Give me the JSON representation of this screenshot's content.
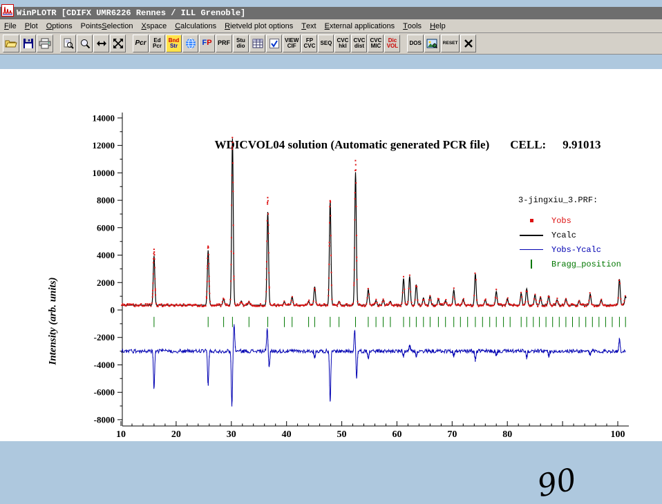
{
  "window": {
    "title": "WinPLOTR [CDIFX UMR6226 Rennes / ILL Grenoble]"
  },
  "menubar": {
    "items": [
      {
        "label": "File",
        "u": 0
      },
      {
        "label": "Plot",
        "u": 0
      },
      {
        "label": "Options",
        "u": 0
      },
      {
        "label": "Points Selection",
        "u": 7
      },
      {
        "label": "X space",
        "u": 0
      },
      {
        "label": "Calculations",
        "u": 0
      },
      {
        "label": "Rietveld plot options",
        "u": 0
      },
      {
        "label": "Text",
        "u": 0
      },
      {
        "label": "External applications",
        "u": 0
      },
      {
        "label": "Tools",
        "u": 0
      },
      {
        "label": "Help",
        "u": 0
      }
    ]
  },
  "toolbar": {
    "buttons": [
      {
        "name": "open-file-button",
        "kind": "icon",
        "icon": "open-folder"
      },
      {
        "name": "save-button",
        "kind": "icon",
        "icon": "save"
      },
      {
        "name": "print-button",
        "kind": "icon",
        "icon": "print"
      },
      {
        "kind": "sep"
      },
      {
        "name": "zoom-page-button",
        "kind": "icon",
        "icon": "zoom-page"
      },
      {
        "name": "zoom-button",
        "kind": "icon",
        "icon": "zoom"
      },
      {
        "name": "expand-horizontal-button",
        "kind": "icon",
        "icon": "resize-h"
      },
      {
        "name": "expand-all-button",
        "kind": "icon",
        "icon": "resize-x"
      },
      {
        "kind": "sep"
      },
      {
        "name": "pcr-button",
        "kind": "text",
        "cls": "pcr",
        "lines": [
          "Pcr"
        ]
      },
      {
        "name": "edit-pcr-button",
        "kind": "text",
        "lines": [
          "Ed",
          "Pcr"
        ]
      },
      {
        "name": "band-str-button",
        "kind": "text",
        "cls": "band",
        "bg": "#ffe24a",
        "lines": [
          "Bnd",
          "Str"
        ],
        "line_colors": [
          "#cc0000",
          "#0000bb"
        ]
      },
      {
        "name": "globe-button",
        "kind": "icon",
        "icon": "globe"
      },
      {
        "name": "fp-button",
        "kind": "text",
        "cls": "fp",
        "lines": [
          "FP"
        ],
        "char_colors": [
          "#0033cc",
          "#cc0000"
        ]
      },
      {
        "name": "prf-button",
        "kind": "text",
        "cls": "prf",
        "lines": [
          "PRF"
        ]
      },
      {
        "name": "studio-button",
        "kind": "text",
        "lines": [
          "Stu",
          "dio"
        ]
      },
      {
        "name": "table-button",
        "kind": "icon",
        "icon": "grid"
      },
      {
        "name": "check-button",
        "kind": "icon",
        "icon": "check"
      },
      {
        "name": "view-cif-button",
        "kind": "text",
        "lines": [
          "VIEW",
          "CIF"
        ]
      },
      {
        "name": "fp-cvc-button",
        "kind": "text",
        "lines": [
          "FP",
          "CVC"
        ]
      },
      {
        "name": "seq-button",
        "kind": "text",
        "lines": [
          "SEQ"
        ]
      },
      {
        "name": "cvc-hkl-button",
        "kind": "text",
        "lines": [
          "CVC",
          "hkl"
        ]
      },
      {
        "name": "cvc-dist-button",
        "kind": "text",
        "lines": [
          "CVC",
          "dist"
        ]
      },
      {
        "name": "cvc-mic-button",
        "kind": "text",
        "lines": [
          "CVC",
          "MIC"
        ]
      },
      {
        "name": "dicvol-button",
        "kind": "text",
        "cls": "dic",
        "lines": [
          "Dic",
          "VOL"
        ],
        "line_colors": [
          "#cc0000",
          "#cc0000"
        ]
      },
      {
        "kind": "sep"
      },
      {
        "name": "dos-button",
        "kind": "text",
        "cls": "dos",
        "lines": [
          "DOS"
        ]
      },
      {
        "name": "image-button",
        "kind": "icon",
        "icon": "image"
      },
      {
        "name": "reset-button",
        "kind": "text",
        "cls": "reset",
        "lines": [
          "RESET"
        ]
      },
      {
        "name": "close-plot-button",
        "kind": "icon",
        "icon": "close-x"
      }
    ]
  },
  "chart_data": {
    "type": "line",
    "title": "WDICVOL04 solution (Automatic generated PCR file)",
    "cell_label": "CELL:",
    "cell_value": "9.91013",
    "ylabel": "Intensity (arb. units)",
    "xlim": [
      10,
      102
    ],
    "ylim": [
      -8000,
      14000
    ],
    "y_ticks": [
      14000,
      12000,
      10000,
      8000,
      6000,
      4000,
      2000,
      0,
      -2000,
      -4000,
      -6000,
      -8000
    ],
    "x_ticks": [
      10,
      20,
      30,
      40,
      50,
      60,
      70,
      80,
      90,
      100
    ],
    "artifact_90": "90",
    "background_level": 350,
    "diff_offset": -3000,
    "bragg_y": -1000,
    "grid": false,
    "legend_position": "upper right",
    "colors": {
      "yobs": "#dd1111",
      "ycalc": "#000000",
      "ydiff": "#0000b2",
      "bragg": "#007700"
    },
    "legend": {
      "header": "3-jingxiu_3.PRF:",
      "entries": [
        {
          "label": "Yobs",
          "color": "#dd1111",
          "marker": "square"
        },
        {
          "label": "Ycalc",
          "color": "#000000",
          "marker": "line",
          "weight": 2
        },
        {
          "label": "Yobs-Ycalc",
          "color": "#0000b2",
          "marker": "line",
          "weight": 1
        },
        {
          "label": "Bragg_position",
          "color": "#007700",
          "marker": "tick"
        }
      ]
    },
    "peaks": [
      [
        16.0,
        4050,
        3600
      ],
      [
        25.8,
        4400,
        4000
      ],
      [
        28.6,
        500,
        480
      ],
      [
        30.2,
        12300,
        12150
      ],
      [
        31.8,
        320,
        310
      ],
      [
        33.2,
        280,
        270
      ],
      [
        36.6,
        7900,
        6800
      ],
      [
        39.6,
        260,
        250
      ],
      [
        41.0,
        650,
        620
      ],
      [
        44.0,
        300,
        290
      ],
      [
        45.1,
        1450,
        1350
      ],
      [
        47.9,
        7700,
        7600
      ],
      [
        49.5,
        300,
        290
      ],
      [
        52.5,
        10600,
        9700
      ],
      [
        54.8,
        1250,
        1150
      ],
      [
        56.2,
        350,
        340
      ],
      [
        57.5,
        400,
        380
      ],
      [
        58.8,
        300,
        290
      ],
      [
        61.2,
        2050,
        1950
      ],
      [
        62.3,
        2200,
        2100
      ],
      [
        63.5,
        1550,
        1500
      ],
      [
        64.8,
        550,
        530
      ],
      [
        66.0,
        700,
        680
      ],
      [
        67.5,
        450,
        430
      ],
      [
        68.8,
        350,
        340
      ],
      [
        70.3,
        1150,
        1100
      ],
      [
        72.0,
        450,
        430
      ],
      [
        74.2,
        2400,
        2300
      ],
      [
        76.0,
        420,
        400
      ],
      [
        78.0,
        1050,
        1000
      ],
      [
        80.0,
        500,
        480
      ],
      [
        82.5,
        900,
        870
      ],
      [
        83.5,
        1250,
        1200
      ],
      [
        85.0,
        800,
        770
      ],
      [
        86.0,
        620,
        600
      ],
      [
        87.5,
        700,
        680
      ],
      [
        89.0,
        420,
        400
      ],
      [
        90.6,
        500,
        480
      ],
      [
        93.0,
        360,
        350
      ],
      [
        95.0,
        850,
        820
      ],
      [
        97.0,
        420,
        400
      ],
      [
        100.3,
        2050,
        1900
      ],
      [
        101.4,
        700,
        660
      ]
    ],
    "diff_spikes": [
      [
        16.0,
        -2700
      ],
      [
        25.8,
        -2450
      ],
      [
        30.1,
        -3900
      ],
      [
        30.5,
        1900
      ],
      [
        36.5,
        1650
      ],
      [
        36.85,
        -1100
      ],
      [
        45.1,
        -450
      ],
      [
        47.9,
        -3650
      ],
      [
        52.35,
        1500
      ],
      [
        52.7,
        -1900
      ],
      [
        54.8,
        -520
      ],
      [
        61.2,
        -450
      ],
      [
        62.3,
        420
      ],
      [
        63.5,
        -380
      ],
      [
        70.3,
        -350
      ],
      [
        74.2,
        -650
      ],
      [
        78.0,
        -360
      ],
      [
        83.5,
        -500
      ],
      [
        87.5,
        -340
      ],
      [
        95.0,
        -320
      ],
      [
        100.3,
        850
      ]
    ],
    "bragg_positions": [
      16.0,
      25.8,
      28.6,
      30.2,
      33.2,
      36.6,
      39.6,
      41.0,
      44.0,
      45.1,
      47.9,
      49.5,
      52.5,
      54.8,
      56.2,
      57.5,
      58.8,
      61.2,
      62.3,
      63.5,
      64.8,
      66.0,
      67.5,
      68.8,
      70.3,
      71.5,
      72.8,
      74.2,
      75.5,
      76.8,
      78.0,
      79.3,
      80.5,
      82.5,
      83.5,
      84.7,
      85.8,
      87.0,
      88.2,
      89.4,
      90.6,
      91.8,
      93.0,
      94.2,
      95.4,
      96.6,
      97.8,
      99.0,
      100.3,
      101.4
    ]
  }
}
